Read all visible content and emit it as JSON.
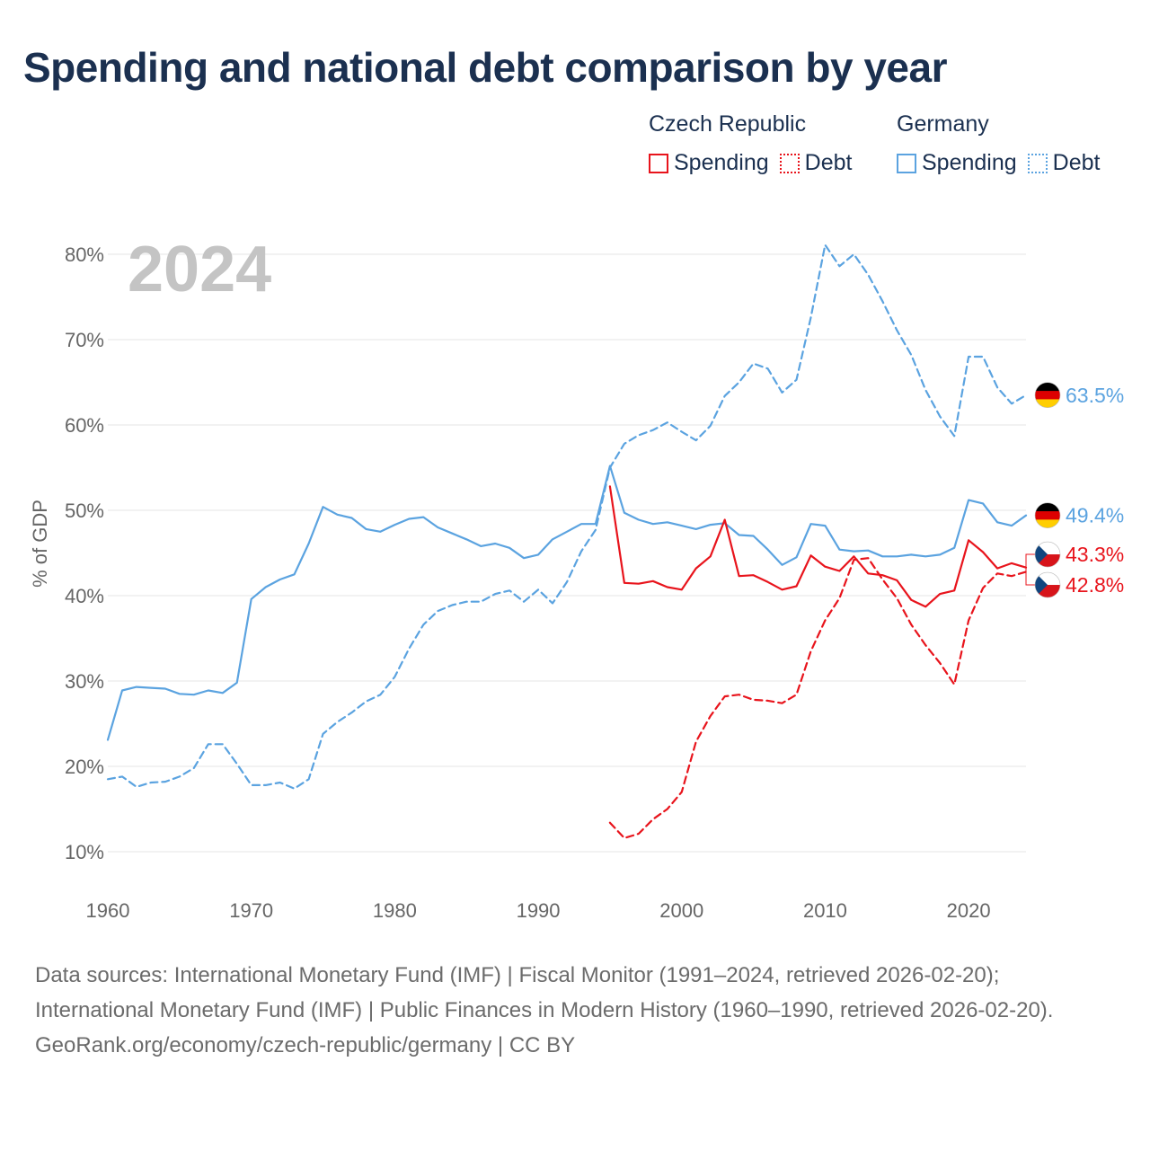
{
  "title": "Spending and national debt comparison by year",
  "legend": {
    "groups": [
      {
        "name": "Czech Republic",
        "items": [
          {
            "label": "Spending",
            "style": "solid",
            "color": "#e8141c"
          },
          {
            "label": "Debt",
            "style": "dashed",
            "color": "#e8141c"
          }
        ]
      },
      {
        "name": "Germany",
        "items": [
          {
            "label": "Spending",
            "style": "solid",
            "color": "#5ba3e0"
          },
          {
            "label": "Debt",
            "style": "dashed",
            "color": "#5ba3e0"
          }
        ]
      }
    ]
  },
  "colors": {
    "czech": "#e8141c",
    "germany": "#5ba3e0",
    "grid": "#e6e6e6",
    "axis_text": "#666666",
    "year_watermark": "#c4c4c4"
  },
  "chart_data": {
    "type": "line",
    "title": "Spending and national debt comparison by year",
    "year_label": "2024",
    "xlabel": "",
    "ylabel": "% of GDP",
    "xlim": [
      1960,
      2024
    ],
    "ylim": [
      10,
      80
    ],
    "x_ticks": [
      1960,
      1970,
      1980,
      1990,
      2000,
      2010,
      2020
    ],
    "y_ticks": [
      10,
      20,
      30,
      40,
      50,
      60,
      70,
      80
    ],
    "y_tick_labels": [
      "10%",
      "20%",
      "30%",
      "40%",
      "50%",
      "60%",
      "70%",
      "80%"
    ],
    "grid": true,
    "series": [
      {
        "name": "Germany Spending",
        "country": "Germany",
        "measure": "Spending",
        "color": "#5ba3e0",
        "dash": false,
        "start": 1960,
        "values": [
          23.1,
          28.9,
          29.3,
          29.2,
          29.1,
          28.5,
          28.4,
          28.9,
          28.6,
          29.8,
          39.6,
          41.0,
          41.9,
          42.5,
          46.1,
          50.4,
          49.5,
          49.1,
          47.8,
          47.5,
          48.3,
          49.0,
          49.2,
          48.0,
          47.3,
          46.6,
          45.8,
          46.1,
          45.6,
          44.4,
          44.8,
          46.6,
          47.5,
          48.4,
          48.4,
          55.2,
          49.7,
          48.9,
          48.4,
          48.6,
          48.2,
          47.8,
          48.3,
          48.5,
          47.1,
          47.0,
          45.4,
          43.6,
          44.5,
          48.4,
          48.2,
          45.4,
          45.2,
          45.3,
          44.6,
          44.6,
          44.8,
          44.6,
          44.8,
          45.6,
          51.2,
          50.8,
          48.6,
          48.2,
          49.4
        ],
        "end_label": "49.4%"
      },
      {
        "name": "Germany Debt",
        "country": "Germany",
        "measure": "Debt",
        "color": "#5ba3e0",
        "dash": true,
        "start": 1960,
        "values": [
          18.5,
          18.8,
          17.6,
          18.1,
          18.2,
          18.8,
          19.8,
          22.6,
          22.6,
          20.3,
          17.8,
          17.8,
          18.1,
          17.4,
          18.5,
          23.8,
          25.2,
          26.3,
          27.6,
          28.4,
          30.5,
          33.8,
          36.6,
          38.2,
          38.9,
          39.3,
          39.3,
          40.2,
          40.6,
          39.3,
          40.7,
          39.1,
          41.6,
          45.2,
          47.7,
          55.0,
          57.8,
          58.8,
          59.4,
          60.3,
          59.2,
          58.2,
          59.9,
          63.4,
          65.0,
          67.2,
          66.6,
          63.8,
          65.3,
          72.6,
          81.1,
          78.6,
          80.0,
          77.6,
          74.5,
          71.1,
          68.2,
          64.1,
          61.0,
          58.7,
          68.0,
          68.0,
          64.4,
          62.5,
          63.5
        ],
        "end_label": "63.5%"
      },
      {
        "name": "Czech Republic Spending",
        "country": "Czech Republic",
        "measure": "Spending",
        "color": "#e8141c",
        "dash": false,
        "start": 1995,
        "values": [
          52.8,
          41.5,
          41.4,
          41.7,
          41.0,
          40.7,
          43.2,
          44.6,
          48.9,
          42.3,
          42.4,
          41.6,
          40.7,
          41.1,
          44.7,
          43.4,
          42.9,
          44.6,
          42.6,
          42.4,
          41.8,
          39.5,
          38.7,
          40.2,
          40.6,
          46.5,
          45.1,
          43.2,
          43.8,
          43.3
        ],
        "end_label": "43.3%"
      },
      {
        "name": "Czech Republic Debt",
        "country": "Czech Republic",
        "measure": "Debt",
        "color": "#e8141c",
        "dash": true,
        "start": 1995,
        "values": [
          13.4,
          11.6,
          12.1,
          13.8,
          15.0,
          17.0,
          22.9,
          25.9,
          28.2,
          28.4,
          27.8,
          27.7,
          27.4,
          28.4,
          33.5,
          37.1,
          39.7,
          44.2,
          44.4,
          41.9,
          39.7,
          36.6,
          34.2,
          32.1,
          29.6,
          37.1,
          40.9,
          42.6,
          42.3,
          42.8
        ],
        "end_label": "42.8%"
      }
    ]
  },
  "footer": {
    "sources": "Data sources: International Monetary Fund (IMF) | Fiscal Monitor (1991–2024, retrieved 2026-02-20); International Monetary Fund (IMF) | Public Finances in Modern History (1960–1990, retrieved 2026-02-20).",
    "credit": "GeoRank.org/economy/czech-republic/germany | CC BY"
  }
}
